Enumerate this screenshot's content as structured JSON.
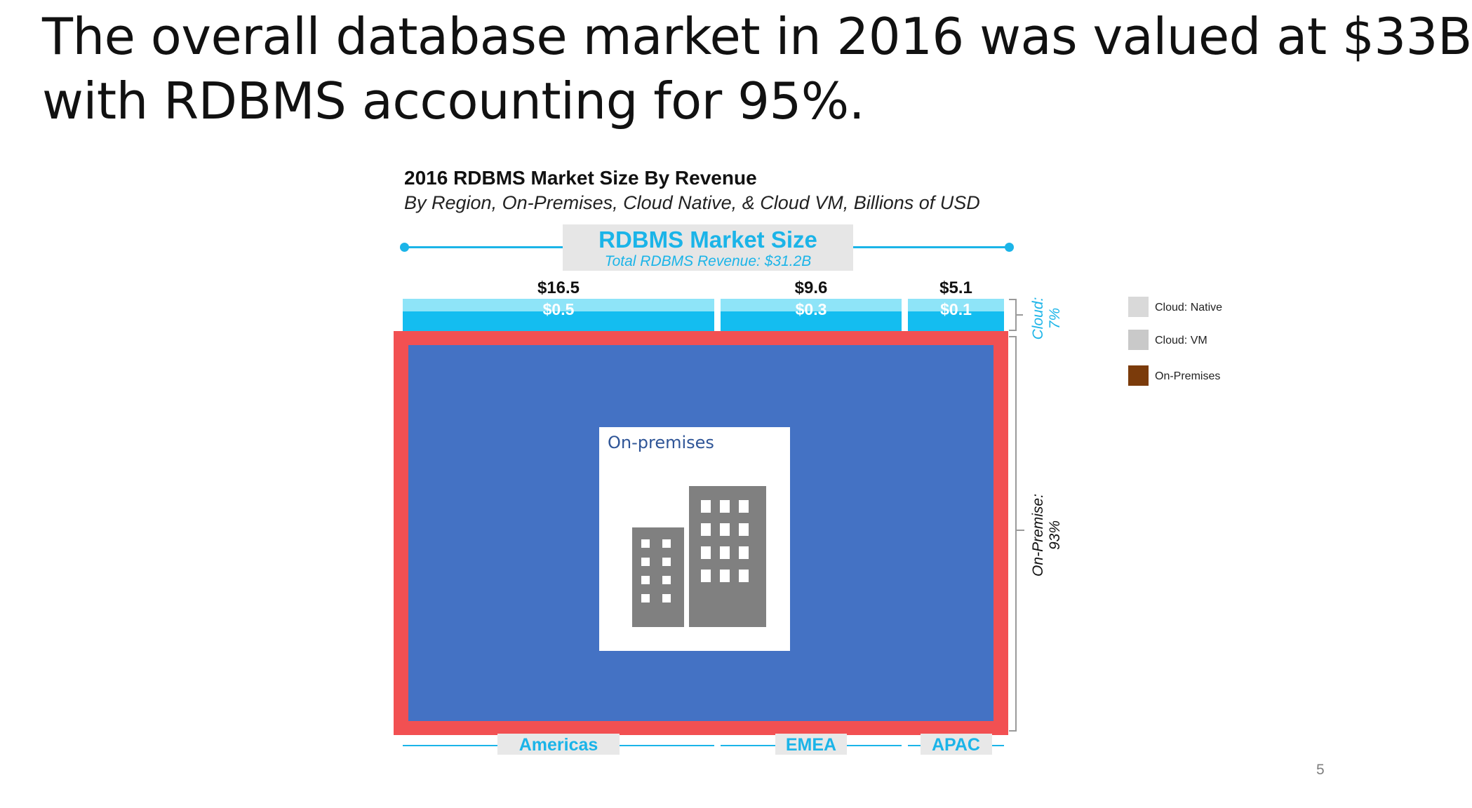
{
  "slide": {
    "title_line1": "The overall database market in 2016 was valued at $33B",
    "title_line2": "with RDBMS accounting for 95%.",
    "page_number": "5"
  },
  "chart_data": {
    "type": "bar",
    "title": "2016 RDBMS Market Size By Revenue",
    "subtitle": "By Region, On-Premises, Cloud Native, & Cloud VM, Billions of USD",
    "header": {
      "title": "RDBMS Market Size",
      "subtitle": "Total RDBMS Revenue: $31.2B"
    },
    "categories": [
      "Americas",
      "EMEA",
      "APAC"
    ],
    "totals": [
      16.5,
      9.6,
      5.1
    ],
    "total_labels": [
      "$16.5",
      "$9.6",
      "$5.1"
    ],
    "series": [
      {
        "name": "Cloud: Native",
        "values": [
          0.5,
          0.3,
          0.1
        ],
        "labels": [
          "$0.5",
          "$0.3",
          "$0.1"
        ],
        "color": "#8ee4f8"
      },
      {
        "name": "Cloud: VM",
        "values": [
          0.7,
          0.4,
          0.2
        ],
        "color": "#14bdf0"
      },
      {
        "name": "On-Premises",
        "color": "#4472c4"
      }
    ],
    "segment_brackets": {
      "cloud": {
        "label_line1": "Cloud:",
        "label_line2": "7%"
      },
      "on_premise": {
        "label_line1": "On-Premise:",
        "label_line2": "93%"
      }
    },
    "legend": [
      {
        "label": "Cloud: Native",
        "color": "#d9d9d9"
      },
      {
        "label": "Cloud: VM",
        "color": "#c9c9c9"
      },
      {
        "label": "On-Premises",
        "color": "#7b3b0b"
      }
    ],
    "overlay": {
      "label": "On-premises",
      "highlight_color": "#f25052",
      "fill_color": "#4472c4",
      "icon": "office-building-icon"
    }
  }
}
